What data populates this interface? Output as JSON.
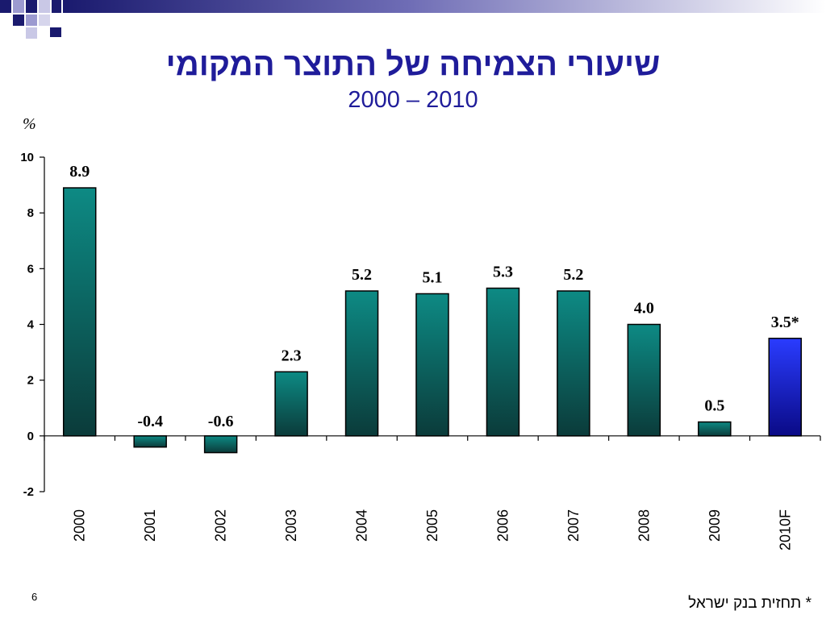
{
  "slide": {
    "title": "שיעורי הצמיחה של התוצר המקומי",
    "subtitle": "2000 – 2010",
    "unit_label": "%",
    "footnote": "* תחזית בנק ישראל",
    "page_number": "6"
  },
  "colors": {
    "title": "#1f1c9a",
    "bar_teal_top": "#0d8a84",
    "bar_teal_bottom": "#0b3b3a",
    "bar_forecast_top": "#2a3cff",
    "bar_forecast_bottom": "#0a0a86",
    "decoration_navy": "#1a1a6e",
    "decoration_lilac": "#9c9ad0"
  },
  "chart_data": {
    "type": "bar",
    "title": "שיעורי הצמיחה של התוצר המקומי",
    "subtitle": "2000 – 2010",
    "ylabel": "%",
    "xlabel": "",
    "categories": [
      "2000",
      "2001",
      "2002",
      "2003",
      "2004",
      "2005",
      "2006",
      "2007",
      "2008",
      "2009",
      "2010F"
    ],
    "values": [
      8.9,
      -0.4,
      -0.6,
      2.3,
      5.2,
      5.1,
      5.3,
      5.2,
      4.0,
      0.5,
      3.5
    ],
    "data_labels": [
      "8.9",
      "-0.4",
      "-0.6",
      "2.3",
      "5.2",
      "5.1",
      "5.3",
      "5.2",
      "4.0",
      "0.5",
      "3.5*"
    ],
    "forecast_index": 10,
    "ylim": [
      -2,
      10
    ],
    "yticks": [
      10,
      8,
      6,
      4,
      2,
      0,
      -2
    ],
    "x_tick_label_rotation": "vertical",
    "grid": false,
    "legend": "none"
  }
}
